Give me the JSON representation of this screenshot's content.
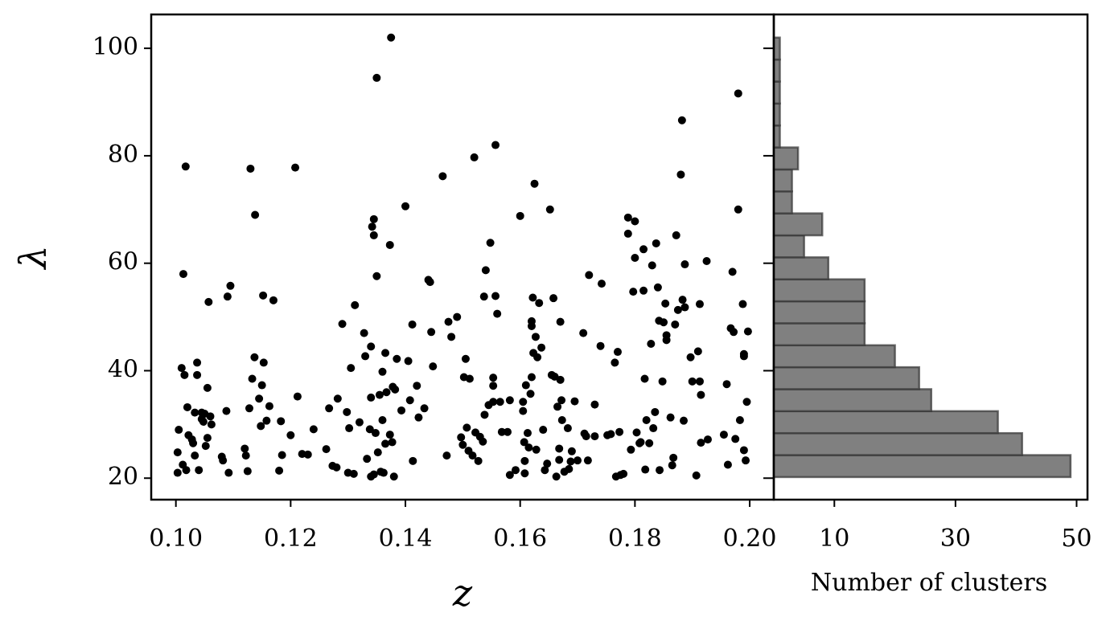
{
  "chart_data": [
    {
      "type": "scatter",
      "xlabel": "z",
      "ylabel": "λ",
      "color": "#000000",
      "xlim": [
        0.0957,
        0.2042
      ],
      "ylim": [
        16,
        106.3
      ],
      "xticks": [
        {
          "value": 0.1,
          "label": "0.10"
        },
        {
          "value": 0.12,
          "label": "0.12"
        },
        {
          "value": 0.14,
          "label": "0.14"
        },
        {
          "value": 0.16,
          "label": "0.16"
        },
        {
          "value": 0.18,
          "label": "0.18"
        },
        {
          "value": 0.2,
          "label": "0.20"
        }
      ],
      "yticks": [
        20,
        40,
        60,
        80,
        100
      ],
      "x": [
        0.101,
        0.1015,
        0.1013,
        0.1017,
        0.1005,
        0.1003,
        0.1003,
        0.1012,
        0.1018,
        0.102,
        0.1022,
        0.1028,
        0.103,
        0.1033,
        0.1037,
        0.1037,
        0.1033,
        0.104,
        0.1045,
        0.1045,
        0.1048,
        0.105,
        0.1052,
        0.1055,
        0.1055,
        0.1057,
        0.106,
        0.1062,
        0.108,
        0.1082,
        0.1088,
        0.109,
        0.1095,
        0.1092,
        0.112,
        0.1122,
        0.1125,
        0.1128,
        0.113,
        0.1133,
        0.1137,
        0.1138,
        0.1145,
        0.1148,
        0.115,
        0.1152,
        0.1153,
        0.1158,
        0.1163,
        0.117,
        0.118,
        0.1183,
        0.1185,
        0.12,
        0.1208,
        0.1212,
        0.122,
        0.123,
        0.124,
        0.1262,
        0.1267,
        0.1273,
        0.128,
        0.1282,
        0.129,
        0.1298,
        0.13,
        0.1302,
        0.1305,
        0.131,
        0.1312,
        0.132,
        0.1328,
        0.133,
        0.1333,
        0.1338,
        0.134,
        0.134,
        0.134,
        0.1342,
        0.1345,
        0.1345,
        0.1345,
        0.1348,
        0.135,
        0.135,
        0.1352,
        0.1355,
        0.1357,
        0.136,
        0.136,
        0.1362,
        0.1365,
        0.1365,
        0.1367,
        0.1373,
        0.1373,
        0.1375,
        0.1377,
        0.1378,
        0.138,
        0.1382,
        0.1385,
        0.1393,
        0.14,
        0.1405,
        0.1408,
        0.1412,
        0.1413,
        0.142,
        0.1423,
        0.1433,
        0.144,
        0.1443,
        0.1445,
        0.1448,
        0.1465,
        0.1472,
        0.1475,
        0.148,
        0.149,
        0.1497,
        0.15,
        0.1502,
        0.1505,
        0.1507,
        0.151,
        0.1512,
        0.1517,
        0.152,
        0.1522,
        0.1527,
        0.153,
        0.1535,
        0.1537,
        0.1538,
        0.154,
        0.1545,
        0.1548,
        0.1553,
        0.1553,
        0.1553,
        0.1557,
        0.1557,
        0.156,
        0.1565,
        0.1568,
        0.1578,
        0.1582,
        0.1582,
        0.1592,
        0.16,
        0.1605,
        0.1605,
        0.1607,
        0.1608,
        0.1608,
        0.161,
        0.1613,
        0.1615,
        0.1618,
        0.162,
        0.162,
        0.162,
        0.1622,
        0.1623,
        0.1625,
        0.1627,
        0.1628,
        0.163,
        0.1633,
        0.1637,
        0.164,
        0.1643,
        0.1647,
        0.1652,
        0.1655,
        0.1658,
        0.166,
        0.1663,
        0.1665,
        0.1668,
        0.1668,
        0.167,
        0.167,
        0.1672,
        0.1673,
        0.1677,
        0.1683,
        0.1685,
        0.1688,
        0.169,
        0.1695,
        0.17,
        0.171,
        0.1712,
        0.1715,
        0.1718,
        0.172,
        0.173,
        0.173,
        0.174,
        0.1742,
        0.1752,
        0.1758,
        0.1765,
        0.1767,
        0.177,
        0.1773,
        0.1775,
        0.178,
        0.1788,
        0.1788,
        0.1793,
        0.1797,
        0.18,
        0.18,
        0.1803,
        0.1808,
        0.181,
        0.1815,
        0.1815,
        0.1817,
        0.1818,
        0.182,
        0.1825,
        0.1828,
        0.183,
        0.1832,
        0.1835,
        0.1837,
        0.184,
        0.1842,
        0.1843,
        0.1848,
        0.185,
        0.1853,
        0.1855,
        0.1855,
        0.1862,
        0.1865,
        0.1867,
        0.187,
        0.1872,
        0.1875,
        0.188,
        0.1882,
        0.1883,
        0.1885,
        0.1887,
        0.1887,
        0.1897,
        0.19,
        0.1907,
        0.191,
        0.1913,
        0.1913,
        0.1915,
        0.1915,
        0.1925,
        0.1927,
        0.1955,
        0.196,
        0.1962,
        0.1967,
        0.197,
        0.1972,
        0.1975,
        0.198,
        0.198,
        0.1983,
        0.1988,
        0.199,
        0.199,
        0.199,
        0.1993,
        0.1995,
        0.1997
      ],
      "values": [
        40.5,
        39.2,
        58,
        78,
        29,
        24.8,
        21,
        22.5,
        21.5,
        33.2,
        28,
        27.2,
        26.5,
        32.2,
        41.5,
        39.2,
        24.2,
        21.5,
        32.2,
        31,
        30.5,
        32,
        26,
        36.8,
        27.5,
        52.8,
        31.5,
        30,
        24,
        23.3,
        32.5,
        53.8,
        55.8,
        21,
        25.5,
        24.2,
        21.3,
        33,
        77.6,
        38.5,
        42.5,
        69,
        34.8,
        29.7,
        37.3,
        54,
        41.5,
        30.7,
        33.4,
        53.1,
        21.4,
        30.6,
        24.3,
        28,
        77.8,
        35.2,
        24.5,
        24.4,
        29.1,
        25.4,
        33,
        22.3,
        22,
        34.8,
        48.7,
        32.3,
        21,
        29.3,
        40.5,
        20.8,
        52.2,
        30.4,
        47,
        42.7,
        23.6,
        29.1,
        35,
        44.5,
        20.3,
        66.8,
        68.2,
        65.2,
        20.7,
        28.4,
        94.5,
        57.6,
        24.8,
        35.5,
        21.2,
        39.8,
        30.8,
        21,
        43.3,
        26.4,
        36,
        63.4,
        28.1,
        102,
        26.7,
        37,
        20.3,
        36.5,
        42.2,
        32.6,
        70.6,
        41.8,
        34.5,
        48.6,
        23.2,
        37.2,
        31.3,
        33,
        56.9,
        56.5,
        47.2,
        40.8,
        76.2,
        24.2,
        49.1,
        46.3,
        50,
        27.6,
        26.2,
        38.8,
        42.2,
        29.4,
        25.1,
        38.5,
        24.2,
        79.7,
        28.5,
        23.2,
        27.7,
        26.8,
        53.8,
        31.8,
        58.7,
        33.6,
        63.8,
        34.2,
        38.7,
        37.2,
        82,
        53.9,
        50.6,
        34.2,
        28.6,
        28.6,
        20.6,
        34.5,
        21.5,
        68.8,
        34.2,
        32.5,
        26.7,
        20.9,
        23.2,
        37.3,
        28.4,
        25.7,
        35.7,
        38.8,
        49.2,
        48.3,
        53.6,
        43.3,
        74.8,
        46.3,
        25.3,
        42.5,
        52.6,
        44.3,
        29,
        21.5,
        22.7,
        70,
        39.2,
        53.5,
        38.9,
        20.3,
        33.3,
        23.4,
        25.5,
        38.3,
        49.1,
        34.5,
        30.8,
        21.2,
        29.3,
        21.7,
        23.1,
        25,
        34.3,
        23.3,
        47,
        28.3,
        27.8,
        23.3,
        57.8,
        33.7,
        27.8,
        44.6,
        56.2,
        28,
        28.2,
        41.5,
        20.3,
        43.5,
        28.6,
        20.6,
        20.8,
        68.5,
        65.5,
        25.3,
        54.7,
        61,
        67.8,
        28.5,
        26.5,
        26.7,
        54.9,
        62.6,
        38.5,
        21.6,
        30.8,
        26.5,
        45,
        59.6,
        29.3,
        32.3,
        63.7,
        55.5,
        49.3,
        21.5,
        38,
        49,
        52.5,
        46.6,
        45.7,
        31.3,
        22.4,
        23.8,
        48.6,
        65.2,
        51.3,
        76.5,
        86.6,
        53.2,
        30.7,
        59.8,
        51.8,
        42.5,
        38,
        20.5,
        43.6,
        52.4,
        38,
        35.5,
        26.6,
        60.4,
        27.2,
        28.1,
        37.5,
        22.5,
        47.9,
        58.4,
        47.2,
        27.3,
        70,
        91.6,
        30.8,
        52.4,
        43.1,
        42.7,
        25.2,
        23.3,
        34.2,
        47.3
      ]
    },
    {
      "type": "histogram",
      "orientation": "horizontal",
      "xlabel": "Number of clusters",
      "color": "#808080",
      "edgecolor": "#333333",
      "xlim": [
        0,
        51.8
      ],
      "ylim": [
        16,
        106.3
      ],
      "xticks": [
        10,
        30,
        50
      ],
      "yticks": [
        20,
        40,
        60,
        80,
        100
      ],
      "bins": [
        20.2,
        24.29,
        28.38,
        32.47,
        36.56,
        40.65,
        44.74,
        48.83,
        52.92,
        57.01,
        61.1,
        65.19,
        69.28,
        73.37,
        77.46,
        81.55,
        85.64,
        89.73,
        93.82,
        97.91,
        102.0
      ],
      "counts": [
        49,
        41,
        37,
        26,
        24,
        20,
        15,
        15,
        15,
        9,
        5,
        8,
        3,
        3,
        4,
        1,
        1,
        1,
        1,
        1
      ]
    }
  ]
}
